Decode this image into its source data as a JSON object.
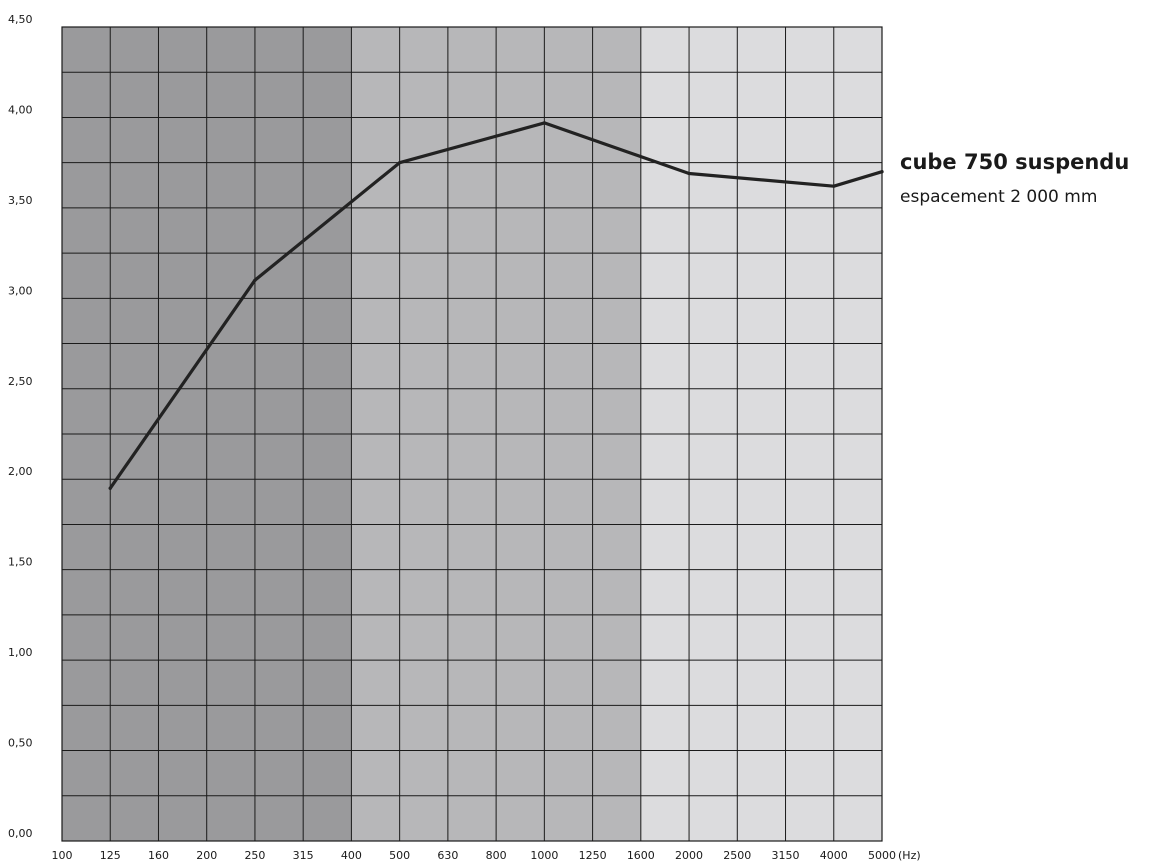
{
  "chart_data": {
    "type": "line",
    "title": "",
    "xlabel": "",
    "ylabel": "",
    "x_unit": "(Hz)",
    "categories": [
      "100",
      "125",
      "160",
      "200",
      "250",
      "315",
      "400",
      "500",
      "630",
      "800",
      "1000",
      "1250",
      "1600",
      "2000",
      "2500",
      "3150",
      "4000",
      "5000"
    ],
    "ylim": [
      0,
      4.5
    ],
    "y_ticks": [
      "0,00",
      "0,50",
      "1,00",
      "1,50",
      "2,00",
      "2,50",
      "3,00",
      "3,50",
      "4,00",
      "4,50"
    ],
    "grid": true,
    "bands": [
      {
        "from": 0,
        "to": 6,
        "color": "#9a9a9c"
      },
      {
        "from": 6,
        "to": 12,
        "color": "#b7b7b9"
      },
      {
        "from": 12,
        "to": 17,
        "color": "#dcdcde"
      }
    ],
    "series": [
      {
        "name": "cube 750 suspendu",
        "note": "espacement 2 000 mm",
        "color": "#222222",
        "points": [
          {
            "x": "125",
            "y": 1.95
          },
          {
            "x": "250",
            "y": 3.1
          },
          {
            "x": "500",
            "y": 3.75
          },
          {
            "x": "1000",
            "y": 3.97
          },
          {
            "x": "2000",
            "y": 3.69
          },
          {
            "x": "4000",
            "y": 3.62
          },
          {
            "x": "5000",
            "y": 3.7
          }
        ]
      }
    ]
  }
}
